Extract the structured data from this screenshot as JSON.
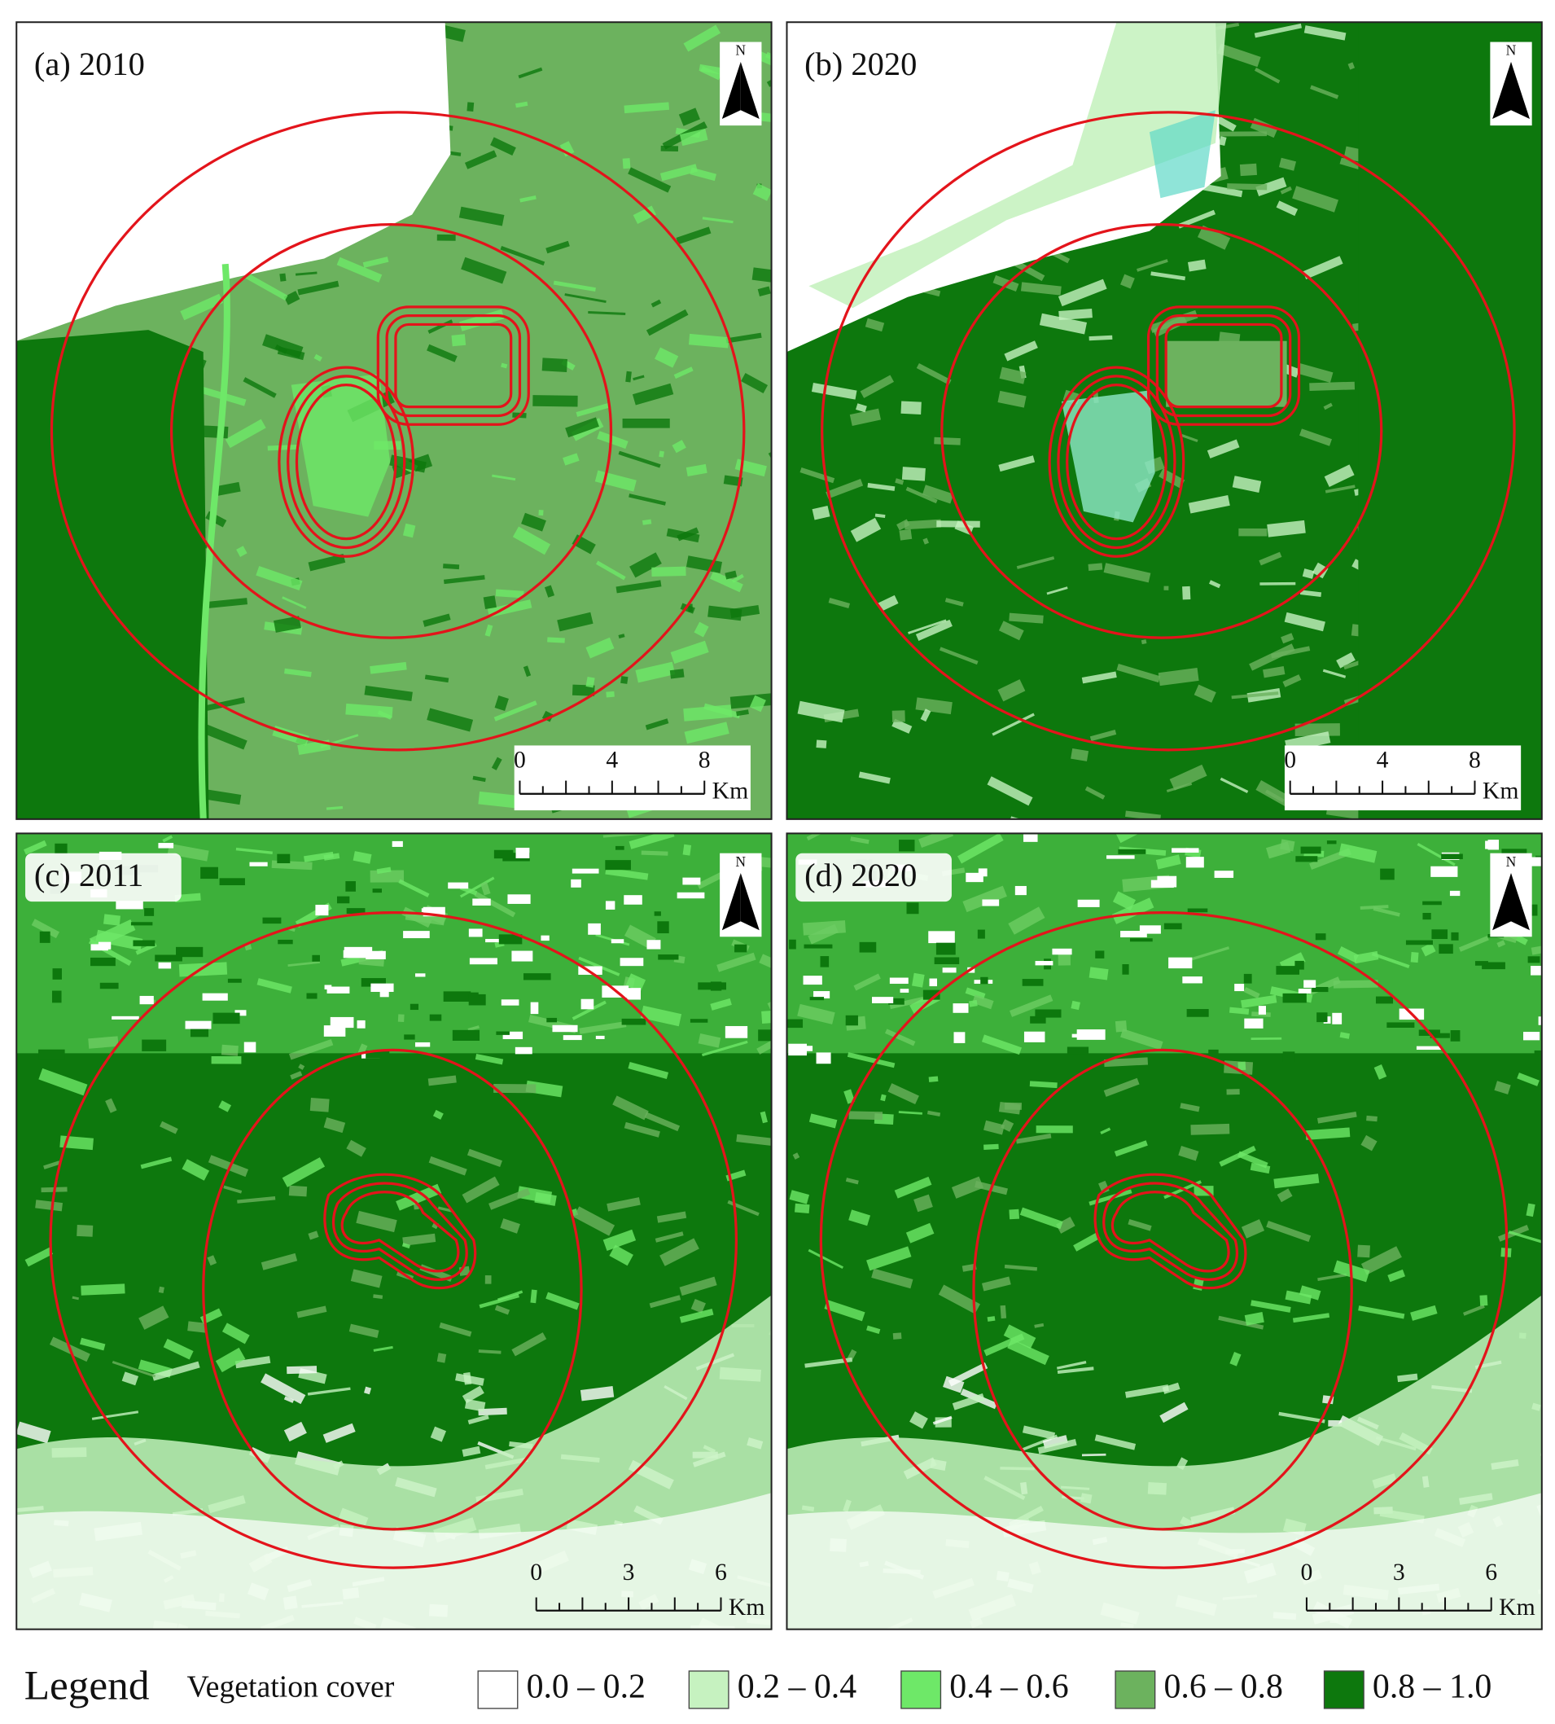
{
  "panels": [
    {
      "label": "(a) 2010",
      "north": "N",
      "scale_ticks": [
        "0",
        "4",
        "8"
      ],
      "scale_unit": "Km"
    },
    {
      "label": "(b) 2020",
      "north": "N",
      "scale_ticks": [
        "0",
        "4",
        "8"
      ],
      "scale_unit": "Km"
    },
    {
      "label": "(c) 2011",
      "north": "N",
      "scale_ticks": [
        "0",
        "3",
        "6"
      ],
      "scale_unit": "Km"
    },
    {
      "label": "(d) 2020",
      "north": "N",
      "scale_ticks": [
        "0",
        "3",
        "6"
      ],
      "scale_unit": "Km"
    }
  ],
  "legend": {
    "title": "Legend",
    "subtitle": "Vegetation cover",
    "items": [
      {
        "label": "0.0 – 0.2",
        "color": "#ffffff"
      },
      {
        "label": "0.2 – 0.4",
        "color": "#c6f2c0"
      },
      {
        "label": "0.4 – 0.6",
        "color": "#6ee868"
      },
      {
        "label": "0.6 – 0.8",
        "color": "#6cb25e"
      },
      {
        "label": "0.8 – 1.0",
        "color": "#0d780d"
      }
    ]
  }
}
